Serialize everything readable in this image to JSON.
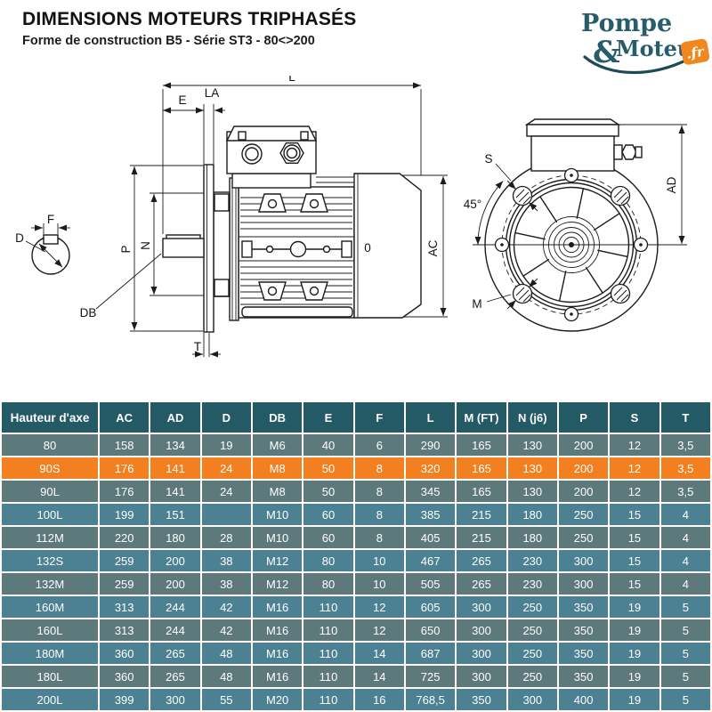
{
  "header": {
    "title": "DIMENSIONS MOTEURS TRIPHASÉS",
    "subtitle": "Forme de construction B5 - Série ST3 - 80<>200"
  },
  "logo": {
    "word1": "Pompe",
    "ampersand": "&",
    "word2": "Moteur",
    "badge": ".fr",
    "teal": "#265c6b",
    "orange": "#f0881f"
  },
  "diagram": {
    "labels": {
      "L": "L",
      "E": "E",
      "LA": "LA",
      "P": "P",
      "N": "N",
      "DB": "DB",
      "T": "T",
      "AC": "AC",
      "zero": "0",
      "D": "D",
      "F": "F",
      "S": "S",
      "M": "M",
      "angle45": "45°",
      "AD": "AD"
    }
  },
  "table": {
    "columns": [
      "Hauteur d'axe",
      "AC",
      "AD",
      "D",
      "DB",
      "E",
      "F",
      "L",
      "M (FT)",
      "N (j6)",
      "P",
      "S",
      "T"
    ],
    "colors": {
      "header_bg": "#235a66",
      "row_dark": "#5d797c",
      "row_blue": "#4c8193",
      "row_highlight": "#f28020",
      "text": "#ffffff"
    },
    "rows": [
      {
        "hauteur": "80",
        "values": [
          "158",
          "134",
          "19",
          "M6",
          "40",
          "6",
          "290",
          "165",
          "130",
          "200",
          "12",
          "3,5"
        ]
      },
      {
        "hauteur": "90S",
        "values": [
          "176",
          "141",
          "24",
          "M8",
          "50",
          "8",
          "320",
          "165",
          "130",
          "200",
          "12",
          "3,5"
        ],
        "highlight": true
      },
      {
        "hauteur": "90L",
        "values": [
          "176",
          "141",
          "24",
          "M8",
          "50",
          "8",
          "345",
          "165",
          "130",
          "200",
          "12",
          "3,5"
        ]
      },
      {
        "hauteur": "100L",
        "values": [
          "199",
          "151",
          "",
          "M10",
          "60",
          "8",
          "385",
          "215",
          "180",
          "250",
          "15",
          "4"
        ]
      },
      {
        "hauteur": "112M",
        "values": [
          "220",
          "180",
          "28",
          "M10",
          "60",
          "8",
          "405",
          "215",
          "180",
          "250",
          "15",
          "4"
        ]
      },
      {
        "hauteur": "132S",
        "values": [
          "259",
          "200",
          "38",
          "M12",
          "80",
          "10",
          "467",
          "265",
          "230",
          "300",
          "15",
          "4"
        ]
      },
      {
        "hauteur": "132M",
        "values": [
          "259",
          "200",
          "38",
          "M12",
          "80",
          "10",
          "505",
          "265",
          "230",
          "300",
          "15",
          "4"
        ]
      },
      {
        "hauteur": "160M",
        "values": [
          "313",
          "244",
          "42",
          "M16",
          "110",
          "12",
          "605",
          "300",
          "250",
          "350",
          "19",
          "5"
        ]
      },
      {
        "hauteur": "160L",
        "values": [
          "313",
          "244",
          "42",
          "M16",
          "110",
          "12",
          "650",
          "300",
          "250",
          "350",
          "19",
          "5"
        ]
      },
      {
        "hauteur": "180M",
        "values": [
          "360",
          "265",
          "48",
          "M16",
          "110",
          "14",
          "687",
          "300",
          "250",
          "350",
          "19",
          "5"
        ]
      },
      {
        "hauteur": "180L",
        "values": [
          "360",
          "265",
          "48",
          "M16",
          "110",
          "14",
          "725",
          "300",
          "250",
          "350",
          "19",
          "5"
        ]
      },
      {
        "hauteur": "200L",
        "values": [
          "399",
          "300",
          "55",
          "M20",
          "110",
          "16",
          "768,5",
          "350",
          "300",
          "400",
          "19",
          "5"
        ]
      }
    ]
  }
}
